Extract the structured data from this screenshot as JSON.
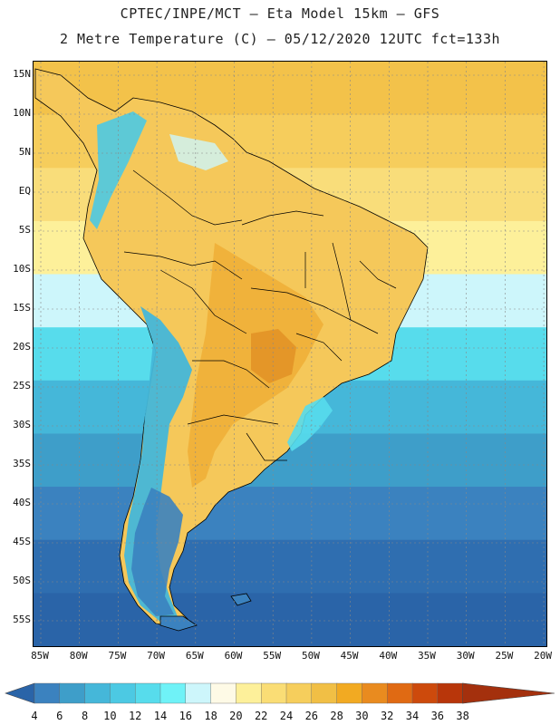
{
  "title_line1": "CPTEC/INPE/MCT –  Eta Model 15km – GFS",
  "title_line2": "2 Metre Temperature (C) – 05/12/2020 12UTC fct=133h",
  "lat_labels": [
    "15N",
    "10N",
    "5N",
    "EQ",
    "5S",
    "10S",
    "15S",
    "20S",
    "25S",
    "30S",
    "35S",
    "40S",
    "45S",
    "50S",
    "55S"
  ],
  "lon_labels": [
    "85W",
    "80W",
    "75W",
    "70W",
    "65W",
    "60W",
    "55W",
    "50W",
    "45W",
    "40W",
    "35W",
    "30W",
    "25W",
    "20W"
  ],
  "colorbar": {
    "levels": [
      "4",
      "6",
      "8",
      "10",
      "12",
      "14",
      "16",
      "18",
      "20",
      "22",
      "24",
      "26",
      "28",
      "30",
      "32",
      "34",
      "36",
      "38"
    ],
    "colors": [
      "#2a64a8",
      "#3b82bf",
      "#3e9ec9",
      "#45b7d9",
      "#4cc9e3",
      "#57dcec",
      "#6ff2f7",
      "#cdf6fb",
      "#fefae6",
      "#fdf09a",
      "#fadd75",
      "#f6ce5c",
      "#f1bf45",
      "#f2aa22",
      "#e98b1f",
      "#e06a13",
      "#cd4a0c",
      "#b8360a",
      "#a4300d"
    ]
  },
  "map": {
    "ocean_bands": [
      {
        "color": "#f3c24a"
      },
      {
        "color": "#f6cd5c"
      },
      {
        "color": "#f9dd7a"
      },
      {
        "color": "#fdf09a"
      },
      {
        "color": "#cdf6fb"
      },
      {
        "color": "#57dcec"
      },
      {
        "color": "#45b7d9"
      },
      {
        "color": "#3e9ec9"
      },
      {
        "color": "#3b82bf"
      },
      {
        "color": "#2f6eb0"
      },
      {
        "color": "#2a64a8"
      }
    ],
    "land_color": "#f3c24a",
    "land_warm_color": "#e9a02b",
    "andes_color": "#4cc9e3",
    "andes_cold_color": "#3b82bf"
  }
}
